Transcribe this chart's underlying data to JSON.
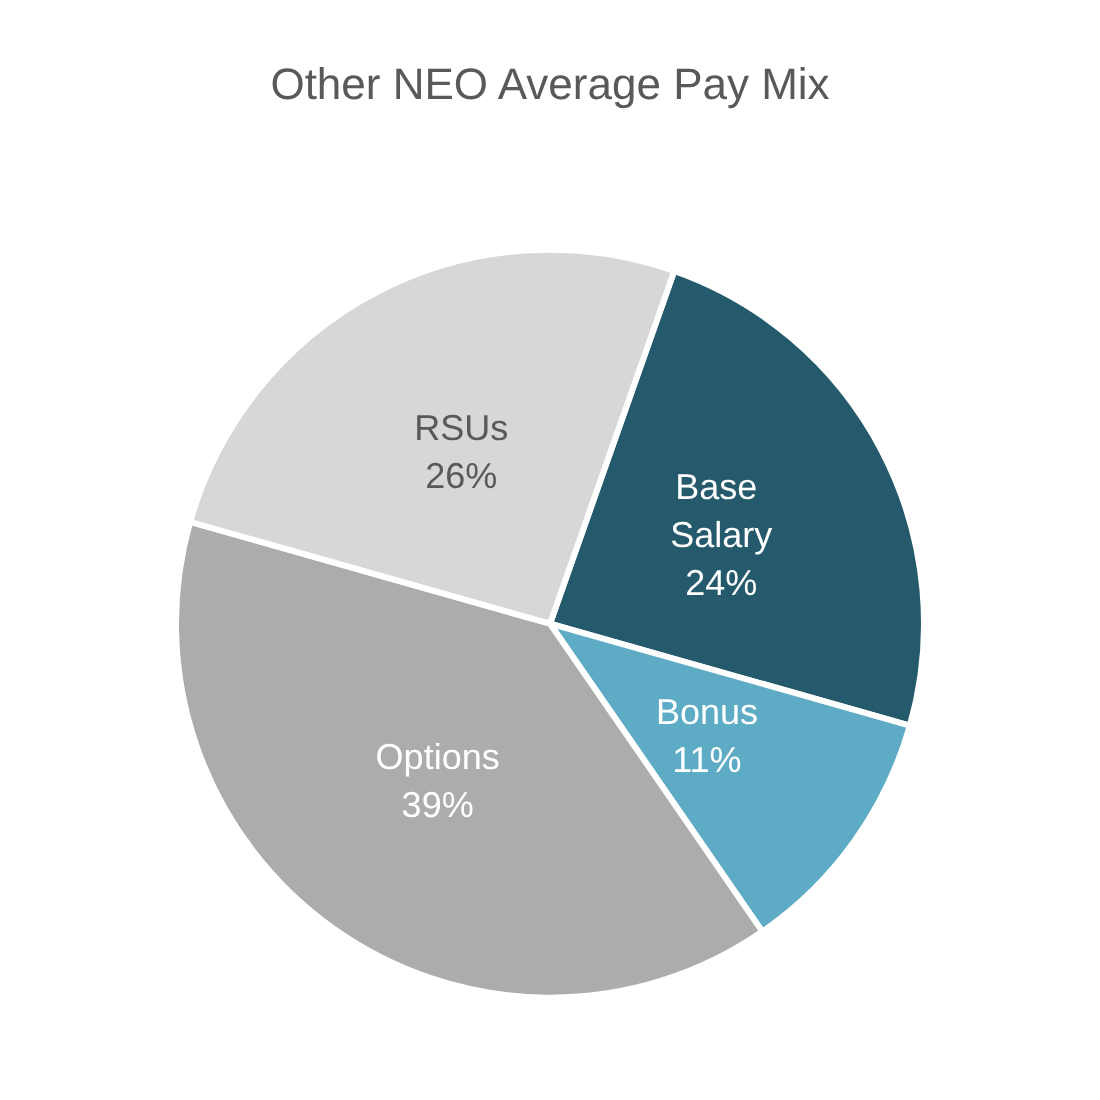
{
  "chart_data": {
    "type": "pie",
    "title": "Other NEO Average Pay Mix",
    "categories": [
      "Base Salary",
      "Bonus",
      "Options",
      "RSUs"
    ],
    "values": [
      24,
      11,
      39,
      26
    ],
    "value_labels": [
      "24%",
      "11%",
      "39%",
      "26%"
    ],
    "colors": [
      "#255a6c",
      "#5eabc6",
      "#acacac",
      "#d7d7d7"
    ],
    "legend": false
  }
}
